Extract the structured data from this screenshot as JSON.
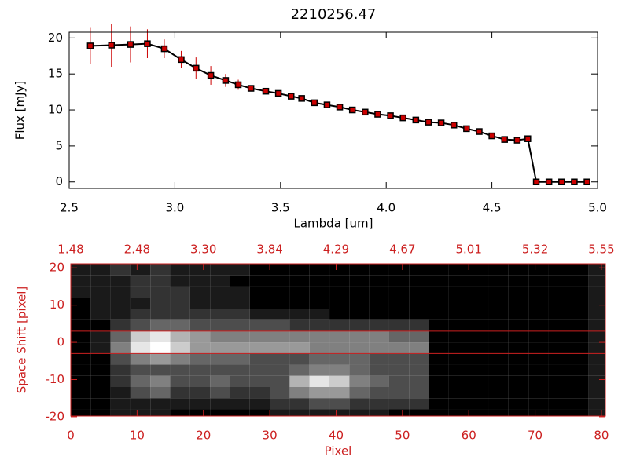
{
  "chart_data": [
    {
      "type": "line",
      "title": "2210256.47",
      "xlabel": "Lambda [um]",
      "ylabel": "Flux [mJy]",
      "x": [
        2.6,
        2.7,
        2.79,
        2.87,
        2.95,
        3.03,
        3.1,
        3.17,
        3.24,
        3.3,
        3.36,
        3.43,
        3.49,
        3.55,
        3.6,
        3.66,
        3.72,
        3.78,
        3.84,
        3.9,
        3.96,
        4.02,
        4.08,
        4.14,
        4.2,
        4.26,
        4.32,
        4.38,
        4.44,
        4.5,
        4.56,
        4.62,
        4.67,
        4.71,
        4.77,
        4.83,
        4.89,
        4.95
      ],
      "values": [
        18.9,
        19.0,
        19.1,
        19.2,
        18.5,
        17.0,
        15.8,
        14.8,
        14.1,
        13.5,
        13.0,
        12.6,
        12.3,
        11.9,
        11.6,
        11.0,
        10.7,
        10.4,
        10.0,
        9.7,
        9.4,
        9.2,
        8.9,
        8.6,
        8.3,
        8.2,
        7.9,
        7.4,
        7.0,
        6.4,
        5.9,
        5.8,
        6.0,
        0,
        0,
        0,
        0,
        0
      ],
      "errors": [
        2.5,
        3,
        2.5,
        2,
        1.3,
        1.2,
        1.5,
        1.3,
        0.9,
        0.7,
        0.4,
        0.3,
        0.3,
        0.3,
        0.3,
        0.3,
        0.3,
        0.3,
        0.3,
        0.3,
        0.3,
        0.3,
        0.3,
        0.3,
        0.3,
        0.3,
        0.3,
        0.3,
        0.3,
        0.3,
        0.3,
        0.3,
        0.3,
        0,
        0,
        0,
        0,
        0
      ],
      "color": "#000000",
      "marker_color": "#cc0000",
      "error_color": "#cc0000",
      "xlim": [
        2.5,
        5.0
      ],
      "xticks": [
        2.5,
        {
          "value": 3,
          "label": "3.0"
        },
        3.5,
        {
          "value": 4,
          "label": "4.0"
        },
        4.5,
        {
          "value": 5,
          "label": "5.0"
        }
      ],
      "ylim": [
        -0.9,
        20.8
      ],
      "yticks": [
        0,
        5,
        10,
        15,
        20
      ]
    },
    {
      "type": "heatmap",
      "xlabel": "Pixel",
      "ylabel": "Space Shift [pixel]",
      "axis_color": "#cc2020",
      "xlim": [
        0,
        80.6
      ],
      "xticks": [
        0,
        10,
        20,
        30,
        40,
        50,
        60,
        70,
        80
      ],
      "x2ticks": [
        {
          "value": 0,
          "label": "1.48"
        },
        {
          "value": 10,
          "label": "2.48"
        },
        {
          "value": 20,
          "label": "3.30"
        },
        {
          "value": 30,
          "label": "3.84"
        },
        {
          "value": 40,
          "label": "4.29"
        },
        {
          "value": 50,
          "label": "4.67"
        },
        {
          "value": 60,
          "label": "5.01"
        },
        {
          "value": 70,
          "label": "5.32"
        },
        {
          "value": 80,
          "label": "5.55"
        }
      ],
      "ylim": [
        -19.8,
        21.1
      ],
      "yticks": [
        -20,
        -10,
        0,
        10,
        20
      ],
      "hlines": [
        3,
        -3
      ],
      "hline_color": "#cc2020",
      "xbins": [
        0,
        3,
        6,
        9,
        12,
        15,
        18,
        21,
        24,
        27,
        30,
        33,
        36,
        39,
        42,
        45,
        48,
        51,
        54,
        57,
        60,
        63,
        66,
        69,
        72,
        75,
        78,
        81
      ],
      "ybins": [
        21,
        18,
        15,
        12,
        9,
        6,
        3,
        0,
        -3,
        -6,
        -9,
        -12,
        -15,
        -18,
        -21
      ],
      "zlim": [
        0,
        10
      ],
      "z": [
        [
          1,
          1,
          2,
          1,
          2,
          1,
          1,
          1,
          1,
          0,
          0,
          0,
          0,
          0,
          0,
          0,
          0,
          0,
          0,
          0,
          0,
          0,
          0,
          0,
          0,
          0,
          1
        ],
        [
          1,
          1,
          1,
          2,
          2,
          1,
          1,
          1,
          0,
          0,
          0,
          0,
          0,
          0,
          0,
          0,
          0,
          0,
          0,
          0,
          0,
          0,
          0,
          0,
          0,
          0,
          1
        ],
        [
          1,
          1,
          1,
          2,
          2,
          2,
          1,
          1,
          1,
          0,
          0,
          0,
          0,
          0,
          0,
          0,
          0,
          0,
          0,
          0,
          0,
          0,
          0,
          0,
          0,
          0,
          1
        ],
        [
          0,
          1,
          1,
          1,
          2,
          2,
          1,
          1,
          1,
          0,
          0,
          0,
          0,
          0,
          0,
          0,
          0,
          0,
          0,
          0,
          0,
          0,
          0,
          0,
          0,
          0,
          1
        ],
        [
          0,
          1,
          1,
          2,
          2,
          2,
          2,
          2,
          2,
          1,
          1,
          1,
          1,
          0,
          0,
          0,
          0,
          0,
          0,
          0,
          0,
          0,
          0,
          0,
          0,
          0,
          1
        ],
        [
          0,
          0,
          2,
          3,
          4,
          4,
          3,
          3,
          3,
          3,
          3,
          2,
          2,
          2,
          2,
          2,
          2,
          2,
          0,
          0,
          0,
          0,
          0,
          0,
          0,
          0,
          1
        ],
        [
          0,
          1,
          4,
          8,
          9,
          7,
          6,
          5,
          5,
          5,
          5,
          5,
          5,
          5,
          5,
          5,
          4,
          4,
          0,
          0,
          0,
          0,
          0,
          0,
          0,
          0,
          1
        ],
        [
          0,
          1,
          5,
          9,
          10,
          8,
          6,
          6,
          6,
          6,
          6,
          6,
          5,
          5,
          5,
          5,
          5,
          5,
          0,
          0,
          0,
          0,
          0,
          0,
          0,
          0,
          1
        ],
        [
          0,
          0,
          3,
          5,
          6,
          5,
          4,
          4,
          4,
          3,
          3,
          3,
          4,
          4,
          4,
          3,
          3,
          3,
          0,
          0,
          0,
          0,
          0,
          0,
          0,
          0,
          1
        ],
        [
          0,
          0,
          2,
          3,
          3,
          3,
          3,
          3,
          3,
          3,
          3,
          4,
          5,
          5,
          4,
          3,
          3,
          3,
          0,
          0,
          0,
          0,
          0,
          0,
          0,
          0,
          1
        ],
        [
          0,
          0,
          2,
          4,
          5,
          3,
          3,
          4,
          3,
          3,
          3,
          7,
          9,
          8,
          5,
          4,
          3,
          3,
          0,
          0,
          0,
          0,
          0,
          0,
          0,
          0,
          1
        ],
        [
          0,
          0,
          1,
          3,
          4,
          2,
          2,
          3,
          2,
          2,
          3,
          5,
          6,
          6,
          4,
          3,
          3,
          3,
          0,
          0,
          0,
          0,
          0,
          0,
          0,
          0,
          1
        ],
        [
          0,
          0,
          1,
          1,
          1,
          1,
          1,
          1,
          1,
          1,
          2,
          2,
          3,
          3,
          2,
          2,
          2,
          2,
          0,
          0,
          0,
          0,
          0,
          0,
          0,
          0,
          1
        ],
        [
          0,
          0,
          1,
          1,
          1,
          0,
          0,
          0,
          0,
          0,
          1,
          1,
          1,
          1,
          1,
          1,
          0,
          0,
          0,
          0,
          0,
          0,
          0,
          0,
          0,
          0,
          1
        ]
      ]
    }
  ]
}
